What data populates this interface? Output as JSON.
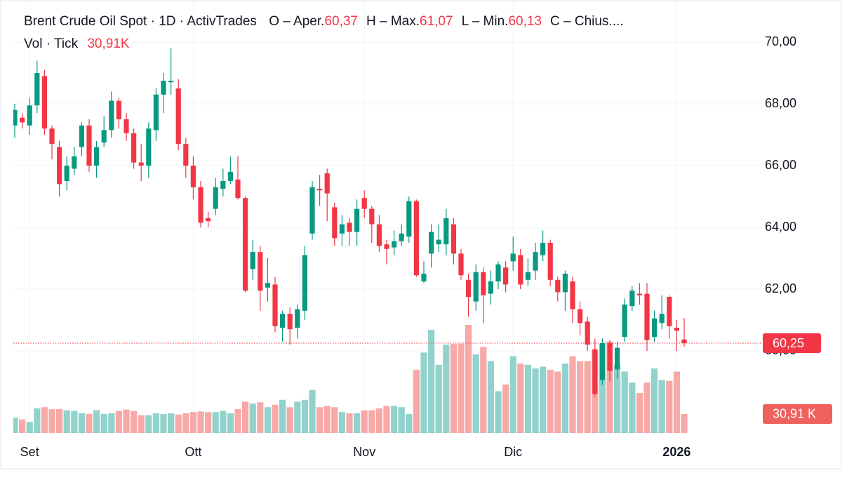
{
  "chart_data": {
    "type": "candlestick",
    "title": "Brent Crude Oil Spot · 1D · ActivTrades",
    "ohlc_legend": [
      {
        "label": "O – Aper.",
        "value": 60.37,
        "value_label": "60,37"
      },
      {
        "label": "H – Max.",
        "value": 61.07,
        "value_label": "61,07"
      },
      {
        "label": "L – Min.",
        "value": 60.13,
        "value_label": "60,13"
      },
      {
        "label": "C – Chius...."
      }
    ],
    "volume_legend": {
      "label": "Vol · Tick",
      "value": 30.91,
      "value_label": "30,91K"
    },
    "last_price": {
      "value": 60.25,
      "label": "60,25"
    },
    "last_volume": {
      "value": 30.91,
      "label": "30,91 K"
    },
    "up_color": "#089981",
    "down_color": "#f23645",
    "volume_up_color": "#92d2cc",
    "volume_down_color": "#f7a9a7",
    "ylim": [
      57.5,
      70.4
    ],
    "yticks": [
      {
        "value": 60,
        "label": "60,00"
      },
      {
        "value": 62,
        "label": "62,00"
      },
      {
        "value": 64,
        "label": "64,00"
      },
      {
        "value": 66,
        "label": "66,00"
      },
      {
        "value": 68,
        "label": "68,00"
      },
      {
        "value": 70,
        "label": "70,00"
      }
    ],
    "grid": true,
    "categories": [
      null,
      null,
      "Set",
      null,
      null,
      null,
      null,
      null,
      null,
      null,
      null,
      null,
      null,
      null,
      null,
      null,
      null,
      null,
      null,
      null,
      null,
      null,
      null,
      null,
      "Ott",
      null,
      null,
      null,
      null,
      null,
      null,
      null,
      null,
      null,
      null,
      null,
      null,
      null,
      null,
      null,
      null,
      null,
      null,
      null,
      null,
      null,
      null,
      "Nov",
      null,
      null,
      null,
      null,
      null,
      null,
      null,
      null,
      null,
      null,
      null,
      null,
      null,
      null,
      null,
      null,
      null,
      null,
      null,
      "Dic",
      null,
      null,
      null,
      null,
      null,
      null,
      null,
      null,
      null,
      null,
      null,
      null,
      null,
      null,
      null,
      null,
      null,
      null,
      null,
      null,
      null,
      "2026",
      null
    ],
    "open": [
      67.3,
      67.55,
      67.3,
      67.95,
      68.9,
      67.2,
      66.6,
      65.5,
      65.9,
      66.6,
      67.3,
      66.0,
      66.75,
      67.15,
      68.1,
      67.5,
      67.05,
      66.1,
      66.0,
      67.15,
      68.3,
      68.7,
      68.5,
      66.7,
      66.0,
      65.3,
      64.3,
      64.6,
      65.25,
      65.5,
      65.55,
      64.95,
      62.65,
      63.2,
      62.05,
      62.15,
      60.75,
      61.2,
      60.75,
      61.3,
      63.8,
      65.25,
      65.75,
      64.65,
      63.8,
      64.15,
      63.85,
      64.95,
      64.6,
      64.1,
      63.45,
      63.35,
      63.55,
      63.7,
      64.85,
      62.25,
      63.15,
      63.45,
      63.45,
      64.1,
      63.15,
      62.3,
      61.6,
      62.55,
      61.85,
      62.25,
      62.7,
      62.9,
      63.1,
      62.3,
      62.6,
      63.1,
      63.5,
      62.3,
      61.9,
      62.25,
      61.35,
      60.95,
      60.05,
      59.05,
      60.25,
      59.4,
      60.45,
      61.45,
      61.85,
      61.85,
      60.45,
      60.9,
      61.75,
      60.75,
      60.37
    ],
    "high": [
      68.0,
      67.7,
      68.2,
      69.4,
      69.1,
      67.3,
      66.8,
      66.3,
      66.6,
      67.4,
      67.5,
      66.8,
      67.6,
      68.4,
      68.2,
      67.7,
      67.2,
      66.7,
      67.4,
      68.5,
      69.0,
      69.8,
      68.8,
      66.9,
      66.3,
      65.5,
      64.5,
      65.6,
      65.9,
      66.3,
      66.3,
      65.0,
      63.6,
      63.4,
      63.0,
      62.4,
      61.3,
      61.4,
      61.5,
      63.4,
      65.5,
      65.7,
      65.9,
      64.8,
      64.4,
      64.3,
      64.9,
      65.2,
      64.7,
      64.4,
      63.6,
      63.9,
      64.1,
      65.0,
      64.9,
      62.9,
      64.1,
      64.1,
      64.6,
      64.3,
      63.3,
      62.5,
      62.8,
      62.7,
      62.6,
      62.9,
      62.9,
      63.7,
      63.3,
      63.0,
      63.5,
      63.9,
      63.6,
      62.4,
      62.6,
      62.4,
      61.6,
      61.1,
      60.4,
      60.4,
      60.35,
      60.3,
      61.7,
      62.1,
      62.2,
      62.2,
      61.3,
      61.8,
      61.8,
      61.0,
      61.07
    ],
    "low": [
      66.9,
      67.2,
      67.0,
      67.7,
      67.0,
      66.2,
      65.0,
      65.2,
      65.7,
      66.3,
      65.8,
      65.6,
      66.6,
      66.9,
      67.2,
      66.8,
      65.9,
      65.5,
      65.6,
      66.8,
      67.7,
      68.3,
      66.5,
      65.6,
      64.9,
      64.0,
      64.0,
      64.4,
      65.0,
      65.4,
      64.9,
      61.9,
      62.3,
      61.3,
      61.6,
      60.6,
      60.3,
      60.2,
      60.4,
      61.0,
      63.6,
      64.7,
      64.2,
      63.4,
      63.4,
      63.4,
      63.4,
      64.3,
      63.5,
      63.2,
      62.8,
      63.1,
      63.4,
      63.5,
      62.4,
      62.2,
      62.7,
      63.2,
      63.1,
      62.8,
      62.3,
      61.1,
      61.3,
      60.9,
      61.5,
      62.0,
      61.9,
      62.6,
      62.0,
      62.1,
      62.3,
      62.9,
      62.1,
      61.6,
      61.3,
      60.9,
      60.5,
      60.0,
      58.5,
      58.9,
      59.0,
      59.1,
      60.3,
      61.3,
      61.5,
      60.0,
      60.3,
      60.7,
      60.4,
      60.0,
      60.13
    ],
    "close": [
      67.8,
      67.4,
      67.95,
      69.0,
      67.2,
      66.7,
      65.4,
      66.0,
      66.3,
      67.3,
      66.0,
      66.6,
      67.15,
      68.1,
      67.5,
      67.05,
      66.1,
      66.0,
      67.2,
      68.3,
      68.75,
      68.75,
      66.7,
      66.0,
      65.3,
      64.15,
      64.2,
      65.3,
      65.5,
      65.8,
      64.95,
      61.95,
      63.2,
      61.95,
      62.2,
      60.8,
      61.2,
      60.7,
      61.35,
      63.1,
      65.3,
      65.2,
      65.1,
      63.65,
      64.1,
      63.85,
      64.6,
      64.6,
      64.1,
      63.4,
      63.3,
      63.55,
      63.8,
      64.85,
      62.45,
      62.5,
      63.85,
      63.6,
      64.3,
      63.15,
      62.45,
      61.75,
      62.55,
      61.8,
      62.25,
      62.8,
      62.15,
      63.15,
      62.15,
      62.55,
      63.2,
      63.5,
      62.3,
      61.9,
      62.5,
      61.35,
      60.9,
      60.2,
      58.6,
      60.25,
      59.35,
      60.1,
      61.5,
      61.95,
      61.8,
      60.35,
      61.05,
      61.2,
      60.8,
      60.65,
      60.25
    ],
    "volume": [
      25,
      22,
      18,
      40,
      42,
      39,
      39,
      37,
      36,
      32,
      31,
      37,
      31,
      32,
      36,
      38,
      36,
      29,
      29,
      32,
      31,
      32,
      30,
      32,
      34,
      35,
      34,
      34,
      36,
      32,
      39,
      51,
      48,
      50,
      42,
      46,
      54,
      42,
      51,
      54,
      70,
      42,
      44,
      42,
      34,
      32,
      32,
      37,
      37,
      40,
      44,
      44,
      42,
      31,
      103,
      131,
      168,
      111,
      144,
      145,
      145,
      176,
      128,
      140,
      117,
      68,
      79,
      125,
      113,
      111,
      105,
      108,
      103,
      100,
      113,
      125,
      117,
      117,
      135,
      145,
      149,
      111,
      100,
      82,
      65,
      82,
      105,
      86,
      85,
      100,
      30.91
    ]
  }
}
